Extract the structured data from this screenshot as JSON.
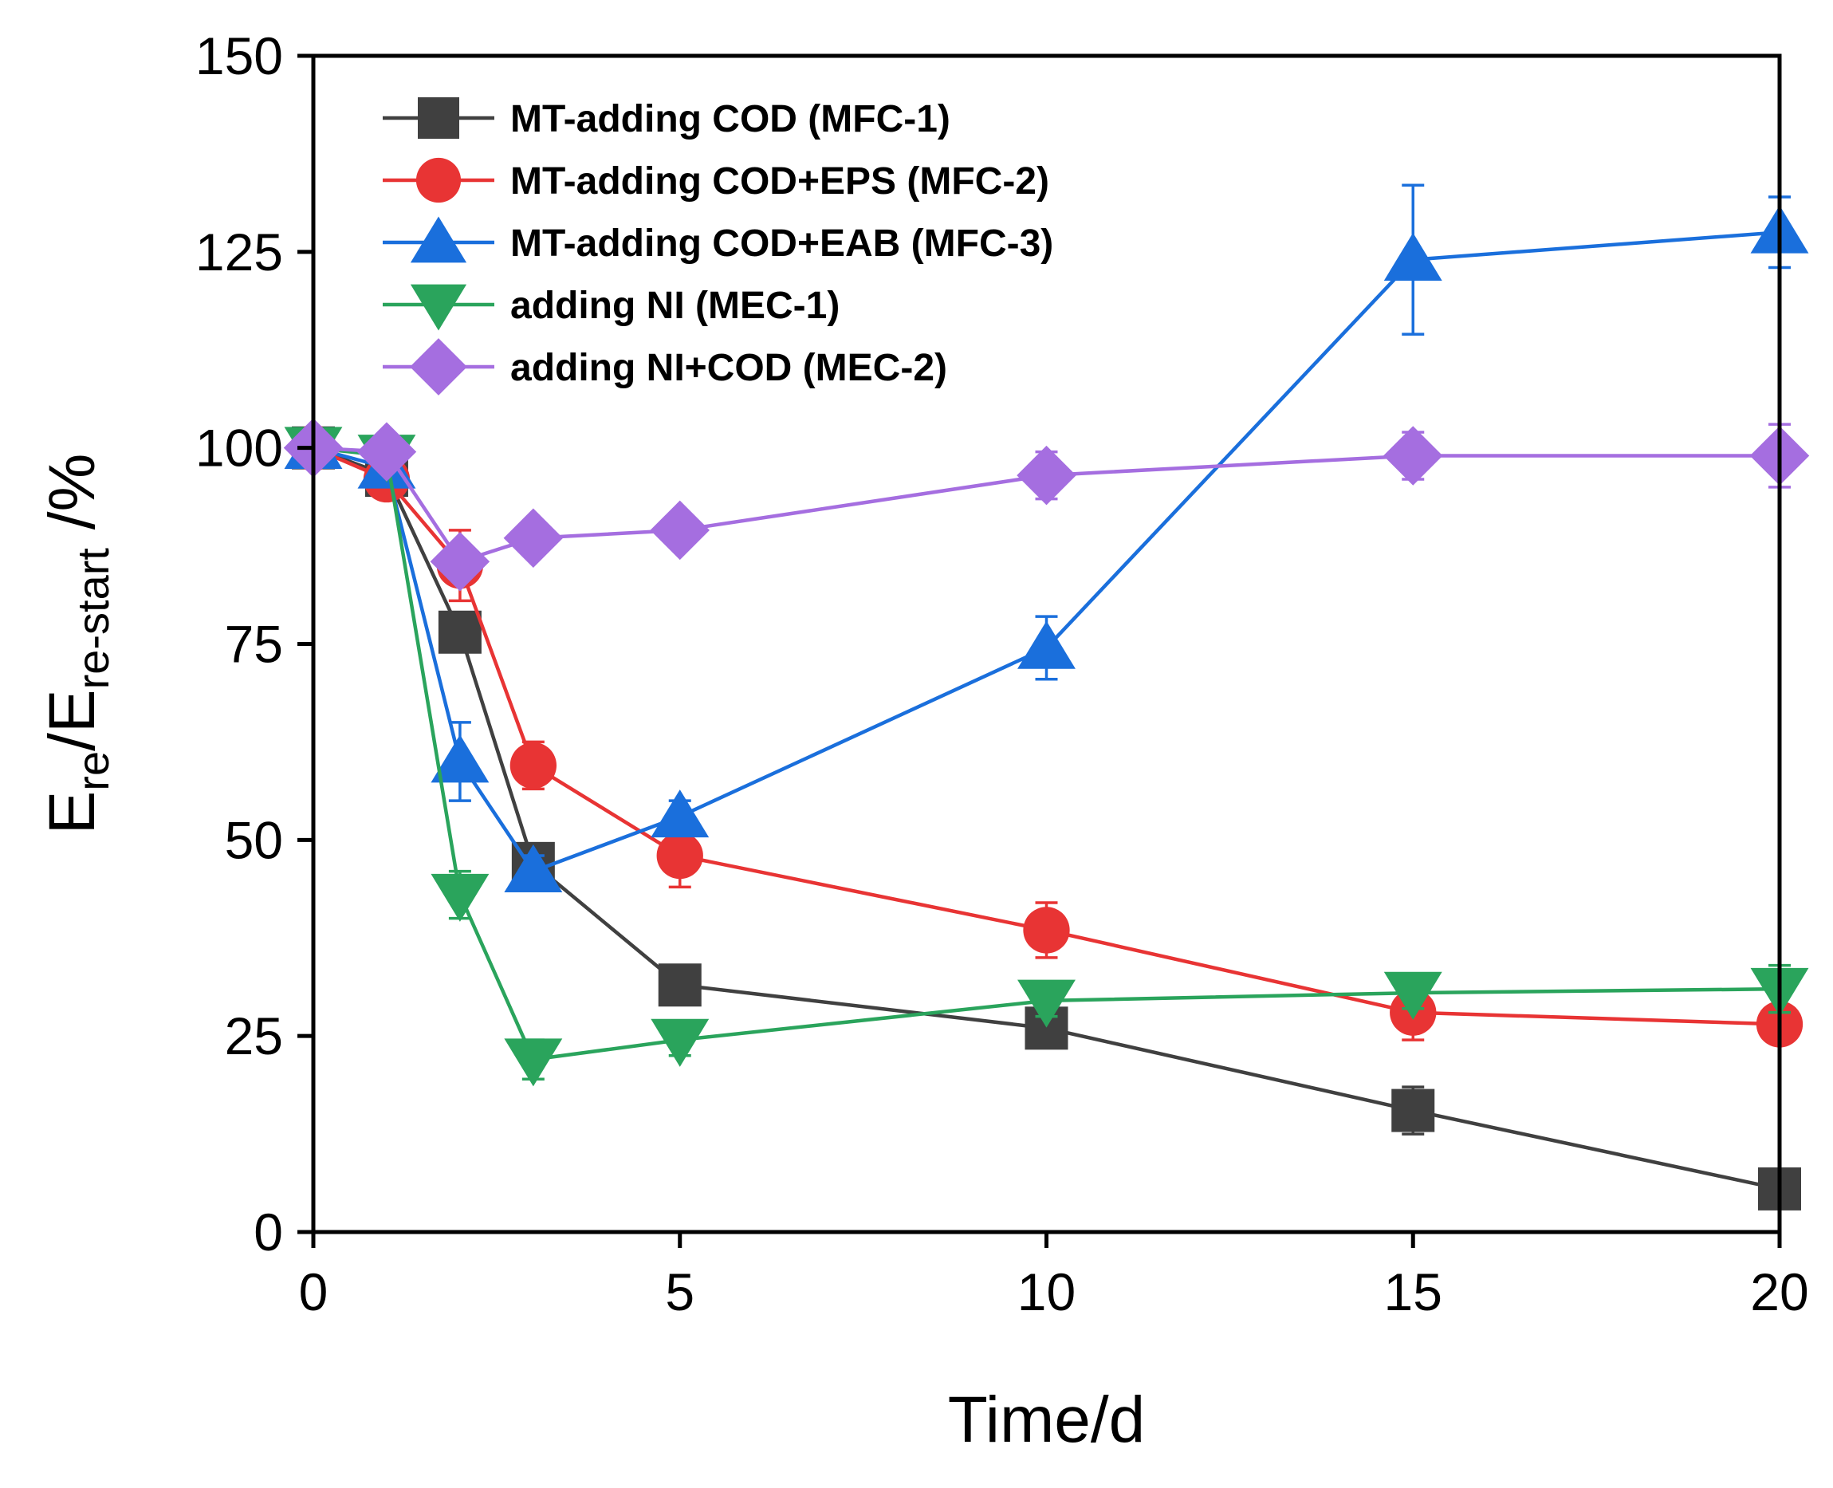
{
  "chart_data": {
    "type": "line",
    "title": "",
    "xlabel": "Time/d",
    "ylabel": {
      "base1": "E",
      "sub1": "re",
      "sep": "/E",
      "sub2": "re-start",
      "unit": " /%"
    },
    "xlim": [
      0,
      20
    ],
    "ylim": [
      0,
      150
    ],
    "xticks": [
      0,
      5,
      10,
      15,
      20
    ],
    "yticks": [
      0,
      25,
      50,
      75,
      100,
      125,
      150
    ],
    "grid": false,
    "legend_position": "top-left",
    "x": [
      0,
      1,
      2,
      3,
      5,
      10,
      15,
      20
    ],
    "series": [
      {
        "name": "MT-adding COD (MFC-1)",
        "color": "#404040",
        "marker": "square",
        "values": [
          100,
          96.5,
          76.5,
          47,
          31.5,
          26,
          15.5,
          5.5
        ],
        "errors": [
          1.2,
          1.5,
          2.0,
          2.5,
          2.0,
          2.0,
          3.0,
          1.5
        ]
      },
      {
        "name": "MT-adding COD+EPS (MFC-2)",
        "color": "#e83434",
        "marker": "circle",
        "values": [
          100,
          96,
          85,
          59.5,
          48,
          38.5,
          28,
          26.5
        ],
        "errors": [
          1.2,
          1.5,
          4.5,
          3.0,
          4.0,
          3.5,
          3.5,
          2.0
        ]
      },
      {
        "name": "MT-adding COD+EAB (MFC-3)",
        "color": "#1a6fdc",
        "marker": "triangle-up",
        "values": [
          100,
          97.5,
          60,
          46,
          53,
          74.5,
          124,
          127.5
        ],
        "errors": [
          1.2,
          1.5,
          5.0,
          2.0,
          2.0,
          4.0,
          9.5,
          4.5
        ]
      },
      {
        "name": "adding NI (MEC-1)",
        "color": "#2aa45c",
        "marker": "triangle-down",
        "values": [
          100,
          99,
          43,
          22,
          24.5,
          29.5,
          30.5,
          31
        ],
        "errors": [
          1.2,
          1.0,
          3.0,
          2.5,
          2.0,
          2.0,
          2.0,
          3.0
        ]
      },
      {
        "name": "adding NI+COD (MEC-2)",
        "color": "#a56ee0",
        "marker": "diamond",
        "values": [
          100,
          99.5,
          85.5,
          88.5,
          89.5,
          96.5,
          99,
          99
        ],
        "errors": [
          1.2,
          1.0,
          2.0,
          1.5,
          1.5,
          3.0,
          3.0,
          4.0
        ]
      }
    ]
  }
}
